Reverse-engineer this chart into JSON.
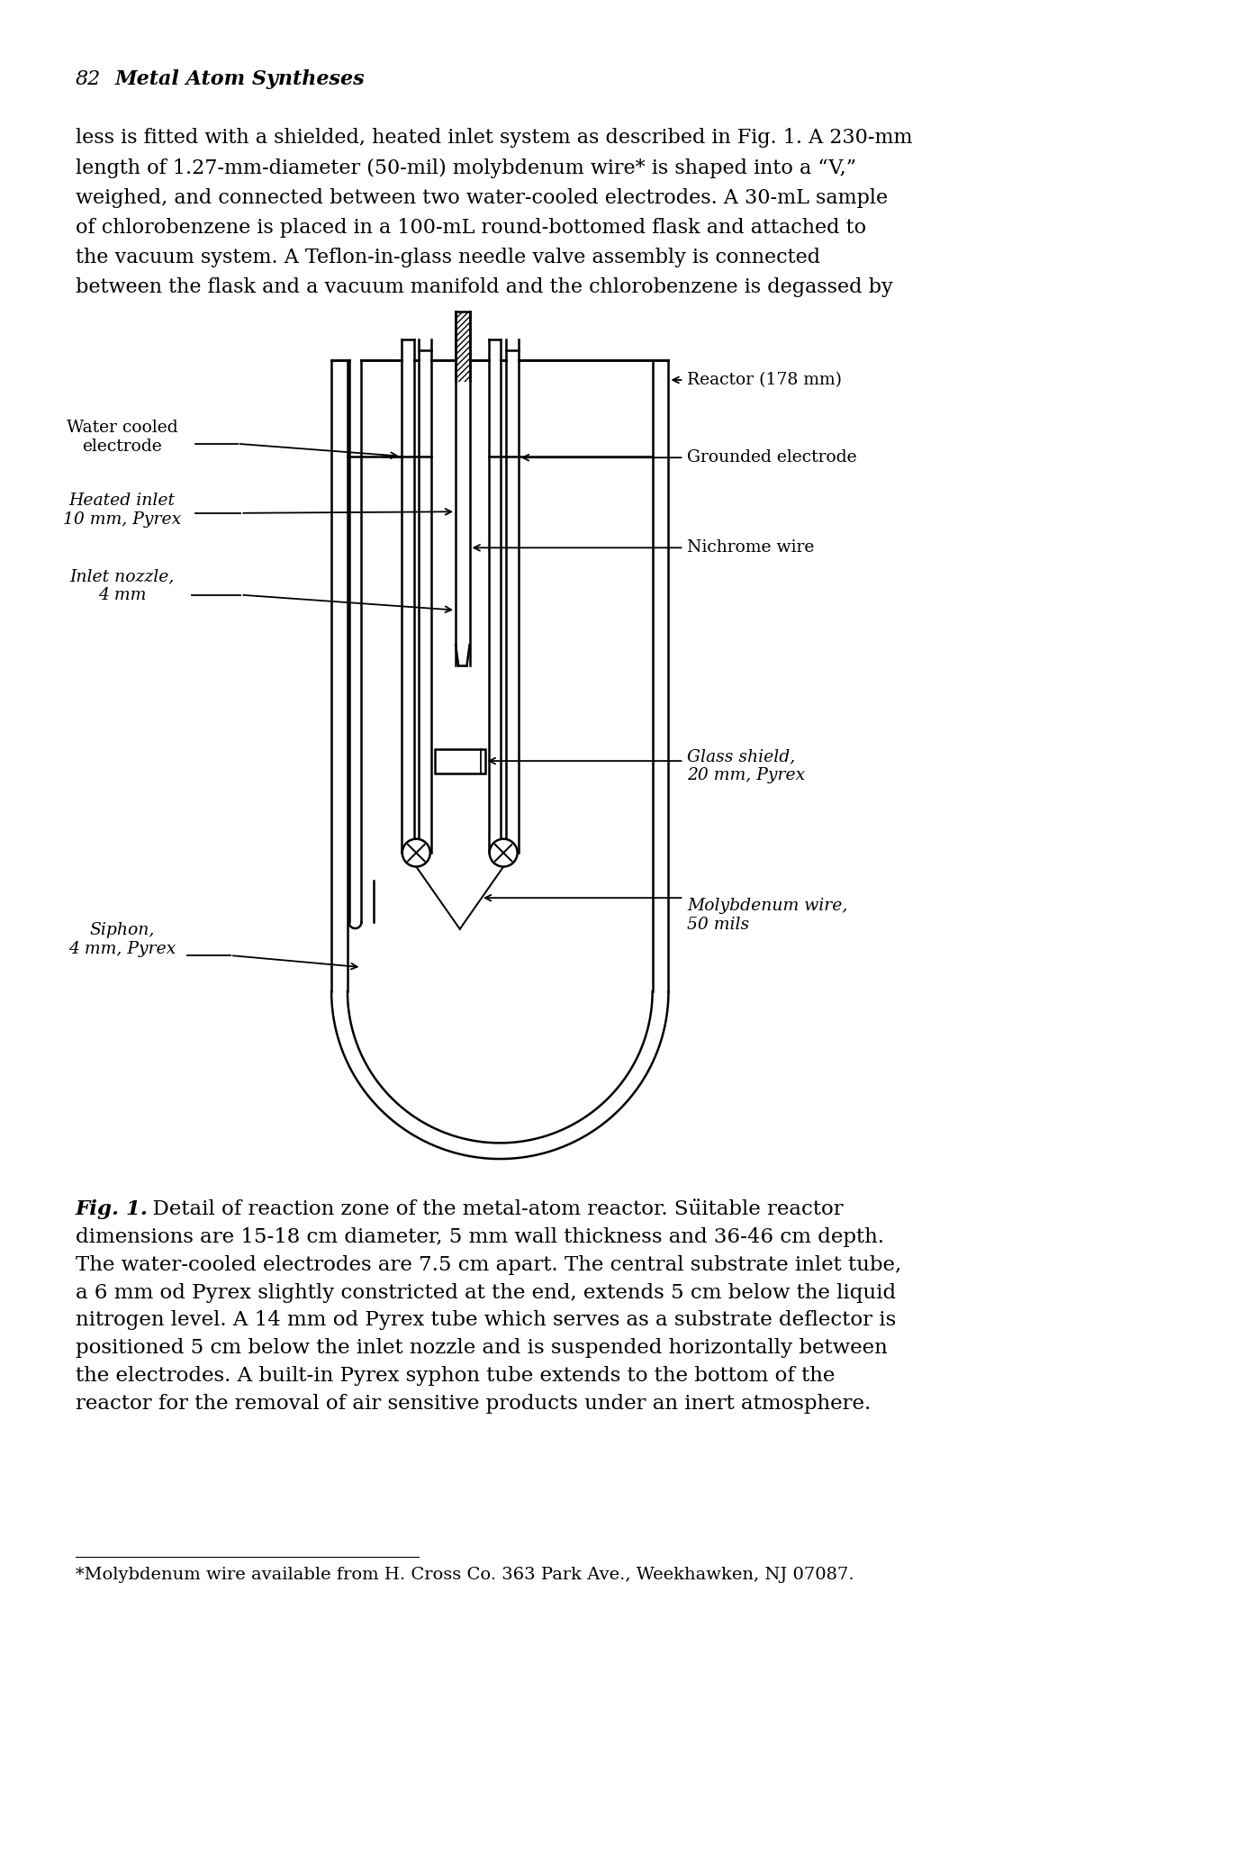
{
  "bg_color": "#ffffff",
  "page_header_num": "82",
  "page_header_title": "   Metal Atom Syntheses",
  "body_text_lines": [
    "less is fitted with a shielded, heated inlet system as described in Fig. 1. A 230-mm",
    "length of 1.27-mm-diameter (50-mil) molybdenum wire* is shaped into a “V,”",
    "weighed, and connected between two water-cooled electrodes. A 30-mL sample",
    "of chlorobenzene is placed in a 100-mL round-bottomed flask and attached to",
    "the vacuum system. A Teflon-in-glass needle valve assembly is connected",
    "between the flask and a vacuum manifold and the chlorobenzene is degassed by"
  ],
  "caption_bold": "Fig. 1.",
  "caption_rest_lines": [
    "  Detail of reaction zone of the metal-atom reactor. Süitable reactor",
    "dimensions are 15-18 cm diameter, 5 mm wall thickness and 36-46 cm depth.",
    "The water-cooled electrodes are 7.5 cm apart. The central substrate inlet tube,",
    "a 6 mm od Pyrex slightly constricted at the end, extends 5 cm below the liquid",
    "nitrogen level. A 14 mm od Pyrex tube which serves as a substrate deflector is",
    "positioned 5 cm below the inlet nozzle and is suspended horizontally between",
    "the electrodes. A built-in Pyrex syphon tube extends to the bottom of the",
    "reactor for the removal of air sensitive products under an inert atmosphere."
  ],
  "footnote": "*Molybdenum wire available from H. Cross Co. 363 Park Ave., Weekhawken, NJ 07087.",
  "lw": 1.8,
  "col": "#000000"
}
